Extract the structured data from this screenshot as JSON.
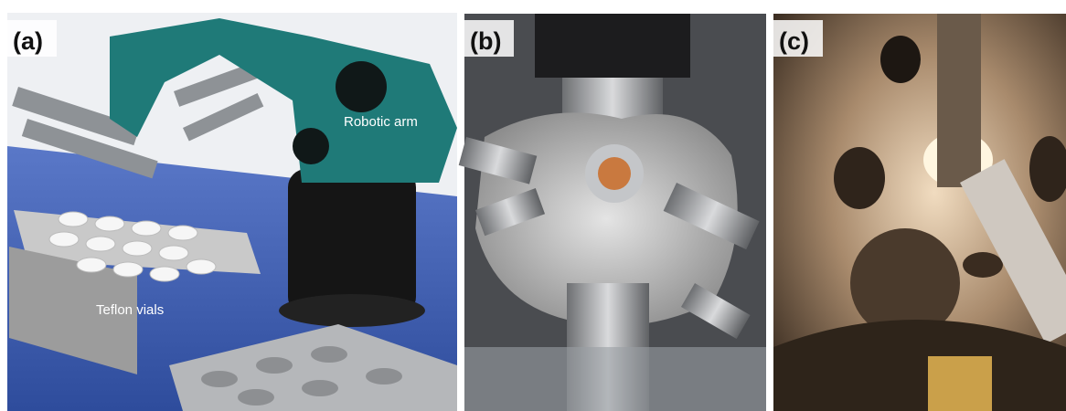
{
  "panels": [
    {
      "label": "(a)",
      "annotations": [
        "Robotic arm",
        "Teflon vials"
      ]
    },
    {
      "label": "(b)"
    },
    {
      "label": "(c)"
    }
  ]
}
